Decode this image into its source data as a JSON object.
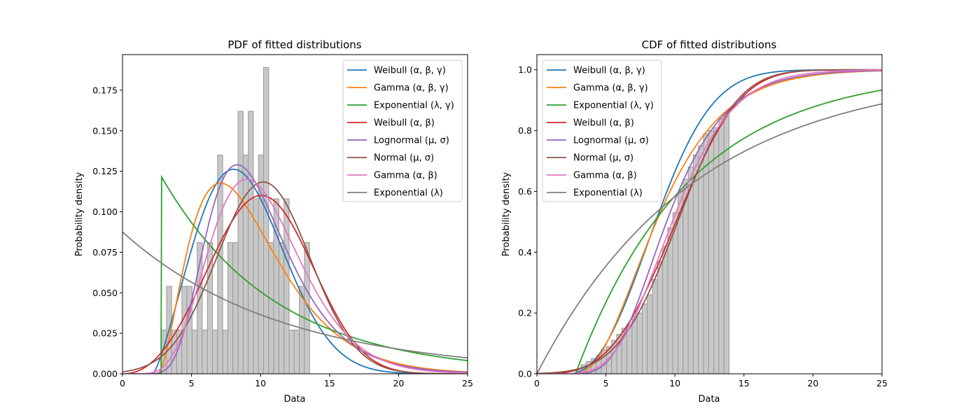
{
  "chart_data": [
    {
      "type": "histogram+line",
      "title": "PDF of fitted distributions",
      "xlabel": "Data",
      "ylabel": "Probability density",
      "xlim": [
        0,
        25
      ],
      "ylim": [
        0,
        0.197
      ],
      "xticks": [
        0,
        5,
        10,
        15,
        20,
        25
      ],
      "xtick_labels": [
        "0",
        "5",
        "10",
        "15",
        "20",
        "25"
      ],
      "yticks": [
        0,
        0.025,
        0.05,
        0.075,
        0.1,
        0.125,
        0.15,
        0.175
      ],
      "ytick_labels": [
        "0.000",
        "0.025",
        "0.050",
        "0.075",
        "0.100",
        "0.125",
        "0.150",
        "0.175"
      ],
      "grid": false,
      "legend_position": "top-right",
      "histogram": {
        "color": "#c8c8c8",
        "edgecolor": "#999999",
        "bin_edges": [
          2.82,
          3.19,
          3.56,
          3.93,
          4.3,
          4.67,
          5.04,
          5.41,
          5.78,
          6.15,
          6.52,
          6.89,
          7.26,
          7.63,
          8.0,
          8.37,
          8.74,
          9.11,
          9.48,
          9.85,
          10.22,
          10.59,
          10.96,
          11.33,
          11.7,
          12.07,
          12.44,
          12.81,
          13.18,
          13.55,
          13.92
        ],
        "densities": [
          0.027,
          0.054,
          0.027,
          0.027,
          0.054,
          0.054,
          0.027,
          0.081,
          0.027,
          0.081,
          0.027,
          0.135,
          0.027,
          0.081,
          0.081,
          0.162,
          0.135,
          0.162,
          0.108,
          0.135,
          0.189,
          0.081,
          0.108,
          0.081,
          0.108,
          0.027,
          0.027,
          0.054,
          0.081,
          0.0
        ]
      },
      "series": [
        {
          "name": "Weibull (α, β, γ)",
          "color": "#1f77b4",
          "dist": "weibull3",
          "params": {
            "shape": 2.3,
            "scale": 7.5,
            "loc": 2.2
          }
        },
        {
          "name": "Gamma (α, β, γ)",
          "color": "#ff7f0e",
          "dist": "gamma3",
          "params": {
            "shape": 3.0,
            "scale": 2.3,
            "loc": 2.5
          }
        },
        {
          "name": "Exponential (λ, γ)",
          "color": "#2ca02c",
          "dist": "expon2",
          "params": {
            "rate": 0.122,
            "loc": 2.8
          }
        },
        {
          "name": "Weibull (α, β)",
          "color": "#d62728",
          "dist": "weibull2",
          "params": {
            "shape": 3.2,
            "scale": 11.3
          }
        },
        {
          "name": "Lognormal (μ, σ)",
          "color": "#9467bd",
          "dist": "lognorm",
          "params": {
            "mu": 2.24,
            "sigma": 0.35
          }
        },
        {
          "name": "Normal (μ, σ)",
          "color": "#8c564b",
          "dist": "norm",
          "params": {
            "mu": 10.2,
            "sigma": 3.37
          }
        },
        {
          "name": "Gamma (α, β)",
          "color": "#e377c2",
          "dist": "gamma2",
          "params": {
            "shape": 8.5,
            "scale": 1.2
          }
        },
        {
          "name": "Exponential (λ)",
          "color": "#7f7f7f",
          "dist": "expon1",
          "params": {
            "rate": 0.0875
          }
        }
      ]
    },
    {
      "type": "histogram+line",
      "title": "CDF of fitted distributions",
      "xlabel": "Data",
      "ylabel": "Probability density",
      "xlim": [
        0,
        25
      ],
      "ylim": [
        0,
        1.05
      ],
      "xticks": [
        0,
        5,
        10,
        15,
        20,
        25
      ],
      "xtick_labels": [
        "0",
        "5",
        "10",
        "15",
        "20",
        "25"
      ],
      "yticks": [
        0,
        0.2,
        0.4,
        0.6,
        0.8,
        1.0
      ],
      "ytick_labels": [
        "0.0",
        "0.2",
        "0.4",
        "0.6",
        "0.8",
        "1.0"
      ],
      "grid": false,
      "legend_position": "top-left",
      "histogram": {
        "color": "#c8c8c8",
        "edgecolor": "#999999",
        "bin_edges": [
          2.82,
          3.19,
          3.56,
          3.93,
          4.3,
          4.67,
          5.04,
          5.41,
          5.78,
          6.15,
          6.52,
          6.89,
          7.26,
          7.63,
          8.0,
          8.37,
          8.74,
          9.11,
          9.48,
          9.85,
          10.22,
          10.59,
          10.96,
          11.33,
          11.7,
          12.07,
          12.44,
          12.81,
          13.18,
          13.55,
          13.92
        ],
        "cumulative": [
          0.01,
          0.03,
          0.04,
          0.05,
          0.06,
          0.08,
          0.09,
          0.11,
          0.13,
          0.15,
          0.16,
          0.19,
          0.2,
          0.23,
          0.26,
          0.31,
          0.37,
          0.42,
          0.48,
          0.53,
          0.6,
          0.64,
          0.68,
          0.72,
          0.75,
          0.79,
          0.8,
          0.81,
          0.84,
          0.86
        ]
      },
      "series": [
        {
          "name": "Weibull (α, β, γ)",
          "color": "#1f77b4",
          "dist": "weibull3",
          "params": {
            "shape": 2.3,
            "scale": 7.5,
            "loc": 2.2
          }
        },
        {
          "name": "Gamma (α, β, γ)",
          "color": "#ff7f0e",
          "dist": "gamma3",
          "params": {
            "shape": 3.0,
            "scale": 2.3,
            "loc": 2.5
          }
        },
        {
          "name": "Exponential (λ, γ)",
          "color": "#2ca02c",
          "dist": "expon2",
          "params": {
            "rate": 0.122,
            "loc": 2.8
          }
        },
        {
          "name": "Weibull (α, β)",
          "color": "#d62728",
          "dist": "weibull2",
          "params": {
            "shape": 3.2,
            "scale": 11.3
          }
        },
        {
          "name": "Lognormal (μ, σ)",
          "color": "#9467bd",
          "dist": "lognorm",
          "params": {
            "mu": 2.24,
            "sigma": 0.35
          }
        },
        {
          "name": "Normal (μ, σ)",
          "color": "#8c564b",
          "dist": "norm",
          "params": {
            "mu": 10.2,
            "sigma": 3.37
          }
        },
        {
          "name": "Gamma (α, β)",
          "color": "#e377c2",
          "dist": "gamma2",
          "params": {
            "shape": 8.5,
            "scale": 1.2
          }
        },
        {
          "name": "Exponential (λ)",
          "color": "#7f7f7f",
          "dist": "expon1",
          "params": {
            "rate": 0.0875
          }
        }
      ]
    }
  ]
}
